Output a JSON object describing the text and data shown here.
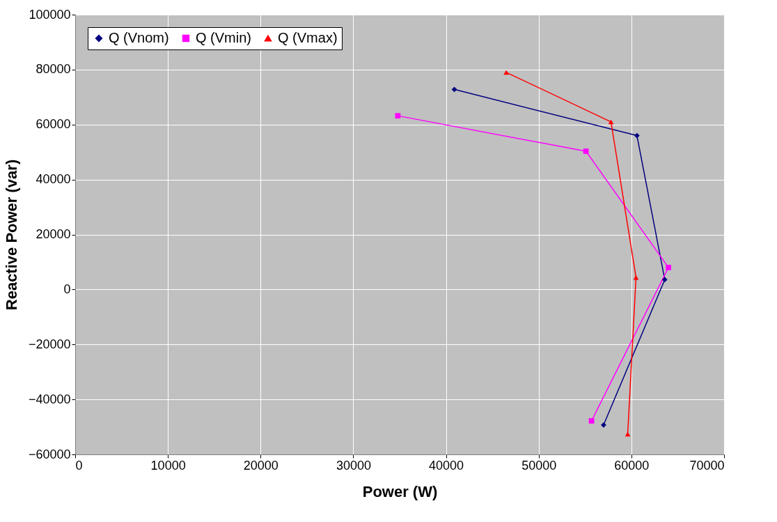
{
  "chart_data": {
    "type": "line",
    "xlabel": "Power (W)",
    "ylabel": "Reactive Power (var)",
    "xlim": [
      0,
      70000
    ],
    "xticks": [
      0,
      10000,
      20000,
      30000,
      40000,
      50000,
      60000,
      70000
    ],
    "ylim": [
      -60000,
      100000
    ],
    "yticks": [
      -60000,
      -40000,
      -20000,
      0,
      20000,
      40000,
      60000,
      80000,
      100000
    ],
    "grid": true,
    "legend": "top left",
    "line_style": "solid",
    "series": [
      {
        "name": "Q (Vnom)",
        "color": "#000080",
        "marker": "diamond",
        "x": [
          40900,
          60600,
          63600,
          57000
        ],
        "values": [
          72800,
          56000,
          3600,
          -49300
        ]
      },
      {
        "name": "Q (Vmin)",
        "color": "#ff00ff",
        "marker": "square",
        "x": [
          34800,
          55100,
          64000,
          55700
        ],
        "values": [
          63200,
          50300,
          8000,
          -47800
        ]
      },
      {
        "name": "Q (Vmax)",
        "color": "#ff0000",
        "marker": "triangle",
        "x": [
          46500,
          57800,
          60500,
          59600
        ],
        "values": [
          79000,
          61000,
          4400,
          -52600
        ]
      }
    ]
  }
}
